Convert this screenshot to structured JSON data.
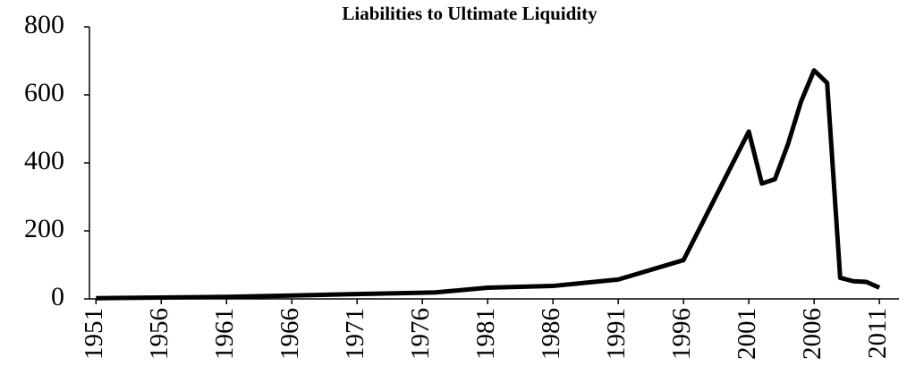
{
  "chart_data": {
    "type": "line",
    "title": "Liabilities to  Ultimate Liquidity",
    "x": [
      1951,
      1956,
      1961,
      1966,
      1971,
      1976,
      1977,
      1981,
      1986,
      1991,
      1996,
      2001,
      2002,
      2003,
      2004,
      2005,
      2006,
      2007,
      2008,
      2009,
      2010,
      2011
    ],
    "series": [
      {
        "name": "Liabilities to Ultimate Liquidity",
        "color": "#000000",
        "values": [
          2,
          4,
          6,
          10,
          14,
          18,
          19,
          33,
          38,
          57,
          114,
          492,
          339,
          352,
          455,
          580,
          672,
          635,
          62,
          52,
          50,
          33
        ]
      }
    ],
    "xlim": [
      1950.5,
      2012.5
    ],
    "xticks": [
      1951,
      1956,
      1961,
      1966,
      1971,
      1976,
      1981,
      1986,
      1991,
      1996,
      2001,
      2006,
      2011
    ],
    "ylim": [
      0,
      800
    ],
    "yticks": [
      0,
      200,
      400,
      600,
      800
    ]
  }
}
